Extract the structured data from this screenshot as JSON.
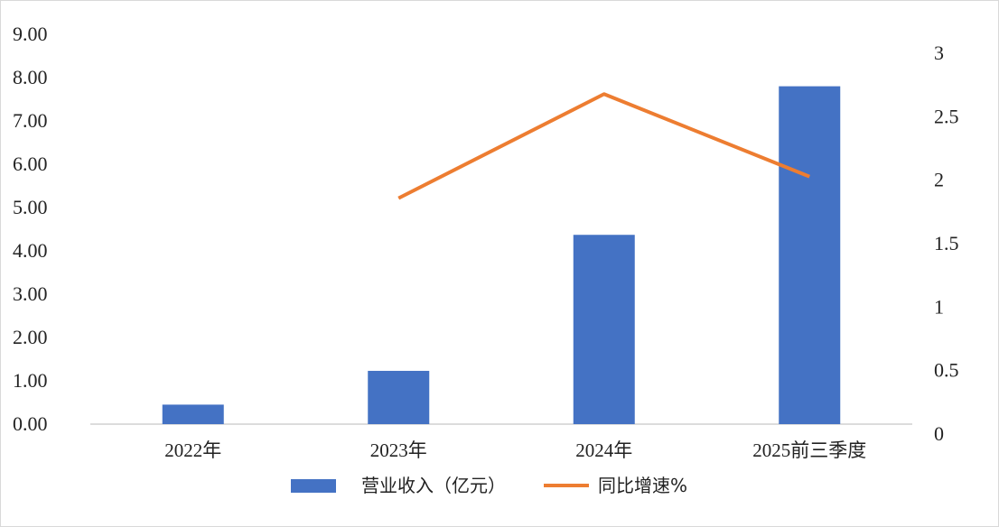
{
  "chart_data": {
    "type": "bar+line",
    "categories": [
      "2022年",
      "2023年",
      "2024年",
      "2025前三季度"
    ],
    "series": [
      {
        "name": "营业收入（亿元）",
        "type": "bar",
        "axis": "left",
        "color": "#4472C4",
        "values": [
          45,
          123,
          437,
          780
        ]
      },
      {
        "name": "同比增速%",
        "type": "line",
        "axis": "right",
        "color": "#ED7D31",
        "values": [
          null,
          1.78,
          2.6,
          1.95
        ]
      }
    ],
    "y_left": {
      "lim": [
        0,
        900
      ],
      "ticks": [
        0,
        100,
        200,
        300,
        400,
        500,
        600,
        700,
        800,
        900
      ],
      "tick_labels": [
        "0.00",
        "1.00",
        "2.00",
        "3.00",
        "4.00",
        "5.00",
        "6.00",
        "7.00",
        "8.00",
        "9.00"
      ]
    },
    "y_right": {
      "lim": [
        0,
        3
      ],
      "ticks": [
        0,
        0.5,
        1,
        1.5,
        2,
        2.5,
        3
      ],
      "tick_labels": [
        "0",
        "0.5",
        "1",
        "1.5",
        "2",
        "2.5",
        "3"
      ]
    },
    "legend_position": "bottom",
    "grid": false
  }
}
